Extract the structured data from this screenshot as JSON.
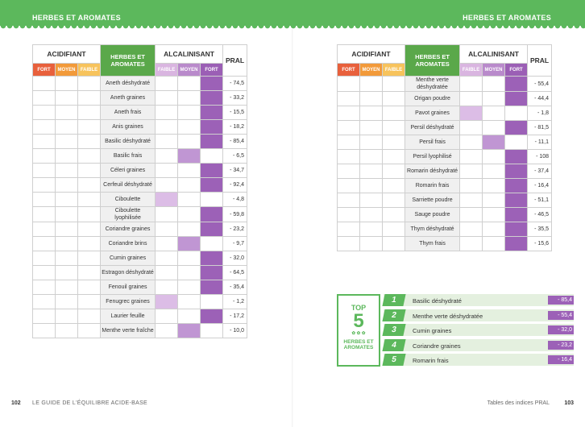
{
  "header": {
    "left_title": "HERBES ET AROMATES",
    "right_title": "HERBES ET AROMATES"
  },
  "tables": [
    {
      "acid": "ACIDIFIANT",
      "name_header": "HERBES ET AROMATES",
      "alc": "ALCALINISANT",
      "pral_header": "PRAL",
      "sub": [
        "FORT",
        "MOYEN",
        "FAIBLE",
        "FAIBLE",
        "MOYEN",
        "FORT"
      ],
      "rows": [
        {
          "name": "Aneth déshydraté",
          "level": "fort",
          "pral": "- 74,5"
        },
        {
          "name": "Aneth graines",
          "level": "fort",
          "pral": "- 33,2"
        },
        {
          "name": "Aneth frais",
          "level": "fort",
          "pral": "- 15,5"
        },
        {
          "name": "Anis graines",
          "level": "fort",
          "pral": "- 18,2"
        },
        {
          "name": "Basilic déshydraté",
          "level": "fort",
          "pral": "- 85,4"
        },
        {
          "name": "Basilic frais",
          "level": "moyen",
          "pral": "- 6,5"
        },
        {
          "name": "Céleri graines",
          "level": "fort",
          "pral": "- 34,7"
        },
        {
          "name": "Cerfeuil déshydraté",
          "level": "fort",
          "pral": "- 92,4"
        },
        {
          "name": "Ciboulette",
          "level": "faible",
          "pral": "- 4,8"
        },
        {
          "name": "Ciboulette lyophilisée",
          "level": "fort",
          "pral": "- 59,8"
        },
        {
          "name": "Coriandre graines",
          "level": "fort",
          "pral": "- 23,2"
        },
        {
          "name": "Coriandre brins",
          "level": "moyen",
          "pral": "- 9,7"
        },
        {
          "name": "Cumin graines",
          "level": "fort",
          "pral": "- 32,0"
        },
        {
          "name": "Estragon déshydraté",
          "level": "fort",
          "pral": "- 64,5"
        },
        {
          "name": "Fenouil graines",
          "level": "fort",
          "pral": "- 35,4"
        },
        {
          "name": "Fenugrec graines",
          "level": "faible",
          "pral": "- 1,2"
        },
        {
          "name": "Laurier feuille",
          "level": "fort",
          "pral": "- 17,2"
        },
        {
          "name": "Menthe verte fraîche",
          "level": "moyen",
          "pral": "- 10,0"
        }
      ]
    },
    {
      "acid": "ACIDIFIANT",
      "name_header": "HERBES ET AROMATES",
      "alc": "ALCALINISANT",
      "pral_header": "PRAL",
      "sub": [
        "FORT",
        "MOYEN",
        "FAIBLE",
        "FAIBLE",
        "MOYEN",
        "FORT"
      ],
      "rows": [
        {
          "name": "Menthe verte déshydratée",
          "level": "fort",
          "pral": "- 55,4"
        },
        {
          "name": "Origan poudre",
          "level": "fort",
          "pral": "- 44,4"
        },
        {
          "name": "Pavot graines",
          "level": "faible",
          "pral": "- 1,8"
        },
        {
          "name": "Persil déshydraté",
          "level": "fort",
          "pral": "- 81,5"
        },
        {
          "name": "Persil frais",
          "level": "moyen",
          "pral": "- 11,1"
        },
        {
          "name": "Persil lyophilisé",
          "level": "fort",
          "pral": "- 108"
        },
        {
          "name": "Romarin déshydraté",
          "level": "fort",
          "pral": "- 37,4"
        },
        {
          "name": "Romarin frais",
          "level": "fort",
          "pral": "- 16,4"
        },
        {
          "name": "Sarriette poudre",
          "level": "fort",
          "pral": "- 51,1"
        },
        {
          "name": "Sauge poudre",
          "level": "fort",
          "pral": "- 46,5"
        },
        {
          "name": "Thym déshydraté",
          "level": "fort",
          "pral": "- 35,5"
        },
        {
          "name": "Thym frais",
          "level": "fort",
          "pral": "- 15,6"
        }
      ]
    }
  ],
  "top5": {
    "top": "TOP",
    "number": "5",
    "label": "HERBES ET AROMATES",
    "items": [
      {
        "rank": 1,
        "name": "Basilic déshydraté",
        "value": "- 85,4"
      },
      {
        "rank": 2,
        "name": "Menthe verte déshydratée",
        "value": "- 55,4"
      },
      {
        "rank": 3,
        "name": "Cumin graines",
        "value": "- 32,0"
      },
      {
        "rank": 4,
        "name": "Coriandre graines",
        "value": "- 23,2"
      },
      {
        "rank": 5,
        "name": "Romarin frais",
        "value": "- 16,4"
      }
    ]
  },
  "footer": {
    "left_page": "102",
    "left_text": "LE GUIDE DE L'ÉQUILIBRE ACIDE-BASE",
    "right_text": "Tables des indices PRAL",
    "right_page": "103"
  }
}
